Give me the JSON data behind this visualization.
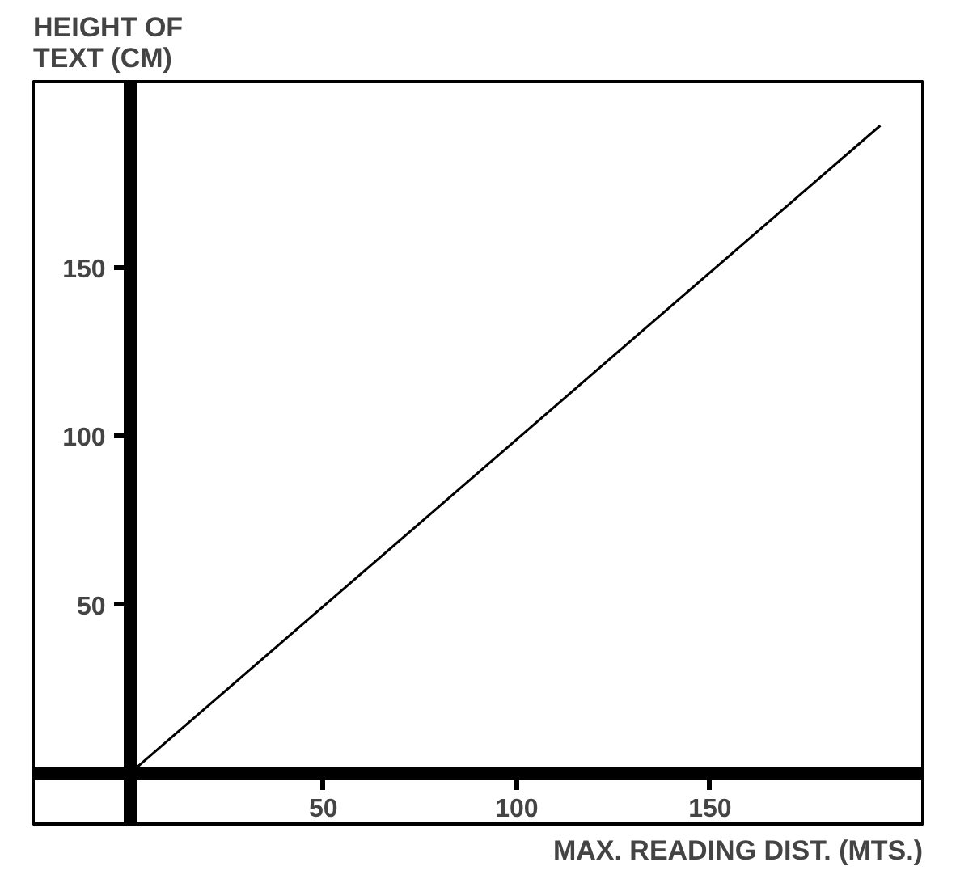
{
  "chart_data": {
    "type": "line",
    "ylabel": "HEIGHT OF\nTEXT (CM)",
    "xlabel": "MAX. READING DIST. (MTS.)",
    "x": [
      0,
      194
    ],
    "series": [
      {
        "color": "#000000",
        "values": [
          0,
          192
        ]
      }
    ],
    "xlim": [
      -25,
      205
    ],
    "ylim": [
      -15,
      205
    ],
    "xticks": [
      50,
      100,
      150
    ],
    "yticks": [
      50,
      100,
      150
    ],
    "grid": false,
    "marker": "none",
    "line_style": "solid"
  }
}
